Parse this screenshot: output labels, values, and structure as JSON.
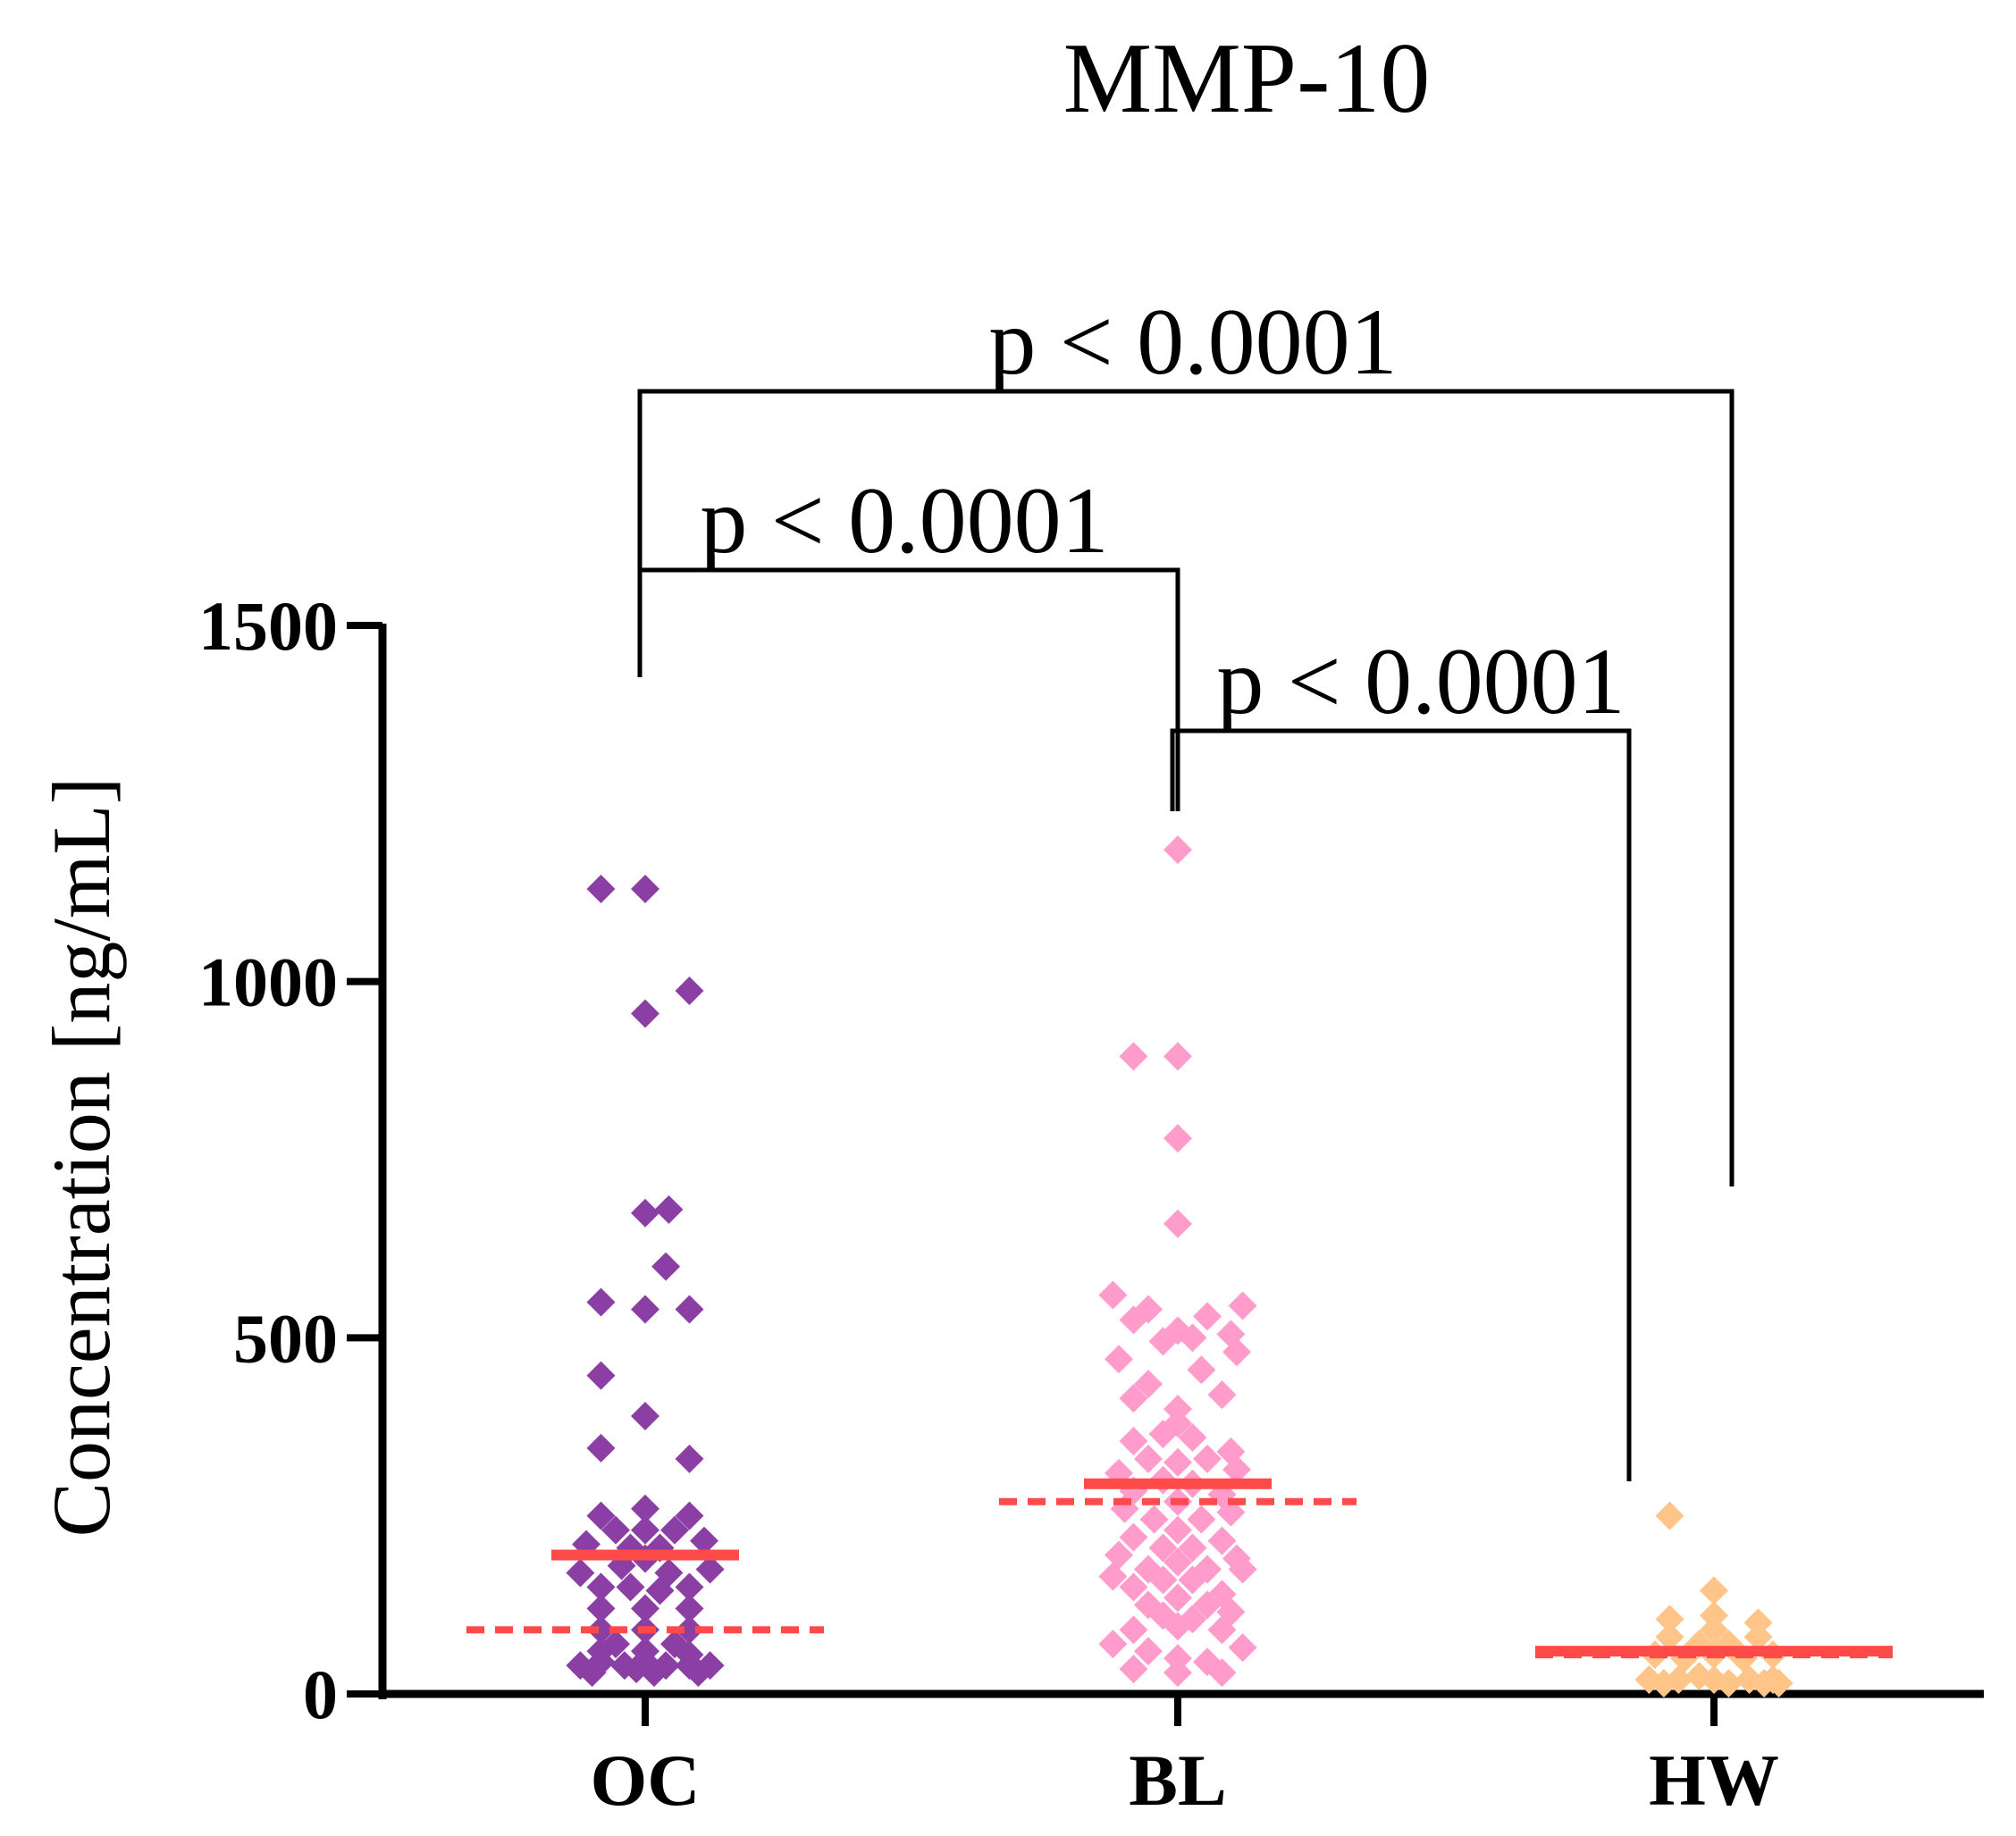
{
  "chart_data": {
    "type": "scatter",
    "title": "MMP-10",
    "xlabel": "",
    "ylabel": "Concentration [ng/mL]",
    "ylim": [
      0,
      1500
    ],
    "yticks": [
      0,
      500,
      1000,
      1500
    ],
    "categories": [
      "OC",
      "BL",
      "HW"
    ],
    "colors": {
      "OC": "#8b3fa5",
      "BL": "#ff9ccb",
      "HW": "#ffc487",
      "median": "#ff4a4a",
      "axis": "#000000"
    },
    "series": [
      {
        "name": "OC",
        "points": [
          [
            -0.15,
            1130
          ],
          [
            0.0,
            1130
          ],
          [
            0.15,
            987
          ],
          [
            0.0,
            955
          ],
          [
            0.08,
            680
          ],
          [
            0.0,
            675
          ],
          [
            -0.15,
            550
          ],
          [
            0.07,
            600
          ],
          [
            0.0,
            540
          ],
          [
            0.15,
            540
          ],
          [
            -0.15,
            447
          ],
          [
            0.0,
            390
          ],
          [
            -0.15,
            345
          ],
          [
            0.15,
            330
          ],
          [
            -0.15,
            250
          ],
          [
            0.15,
            250
          ],
          [
            0.0,
            260
          ],
          [
            -0.1,
            230
          ],
          [
            0.1,
            230
          ],
          [
            -0.2,
            210
          ],
          [
            0.2,
            215
          ],
          [
            0.0,
            230
          ],
          [
            -0.05,
            205
          ],
          [
            0.05,
            205
          ],
          [
            -0.22,
            170
          ],
          [
            0.22,
            175
          ],
          [
            -0.08,
            180
          ],
          [
            0.08,
            170
          ],
          [
            0.0,
            190
          ],
          [
            -0.15,
            150
          ],
          [
            0.15,
            150
          ],
          [
            -0.05,
            150
          ],
          [
            0.05,
            145
          ],
          [
            0.0,
            120
          ],
          [
            -0.15,
            120
          ],
          [
            0.15,
            120
          ],
          [
            -0.15,
            90
          ],
          [
            0.15,
            90
          ],
          [
            0.0,
            90
          ],
          [
            -0.1,
            70
          ],
          [
            0.1,
            70
          ],
          [
            -0.15,
            60
          ],
          [
            0.15,
            55
          ],
          [
            0.0,
            60
          ],
          [
            -0.22,
            40
          ],
          [
            -0.15,
            45
          ],
          [
            -0.07,
            40
          ],
          [
            0.0,
            45
          ],
          [
            0.07,
            40
          ],
          [
            0.15,
            40
          ],
          [
            0.22,
            40
          ],
          [
            -0.18,
            30
          ],
          [
            0.18,
            30
          ],
          [
            -0.03,
            35
          ],
          [
            0.03,
            30
          ]
        ],
        "median": 195,
        "mean": 90
      },
      {
        "name": "BL",
        "points": [
          [
            0.0,
            1185
          ],
          [
            -0.15,
            895
          ],
          [
            0.0,
            895
          ],
          [
            0.0,
            780
          ],
          [
            0.0,
            660
          ],
          [
            -0.22,
            560
          ],
          [
            0.22,
            545
          ],
          [
            -0.1,
            540
          ],
          [
            0.1,
            530
          ],
          [
            -0.15,
            525
          ],
          [
            0.0,
            510
          ],
          [
            0.18,
            505
          ],
          [
            -0.05,
            495
          ],
          [
            0.05,
            500
          ],
          [
            0.2,
            480
          ],
          [
            -0.2,
            470
          ],
          [
            0.08,
            455
          ],
          [
            -0.1,
            435
          ],
          [
            -0.15,
            415
          ],
          [
            0.15,
            420
          ],
          [
            0.0,
            400
          ],
          [
            0.0,
            380
          ],
          [
            -0.05,
            365
          ],
          [
            0.05,
            360
          ],
          [
            -0.15,
            355
          ],
          [
            0.18,
            340
          ],
          [
            -0.1,
            330
          ],
          [
            0.0,
            325
          ],
          [
            0.1,
            330
          ],
          [
            -0.2,
            310
          ],
          [
            0.2,
            315
          ],
          [
            -0.05,
            300
          ],
          [
            0.05,
            295
          ],
          [
            -0.15,
            285
          ],
          [
            0.15,
            280
          ],
          [
            0.0,
            270
          ],
          [
            -0.18,
            260
          ],
          [
            0.18,
            255
          ],
          [
            -0.08,
            245
          ],
          [
            0.08,
            245
          ],
          [
            0.0,
            230
          ],
          [
            -0.15,
            220
          ],
          [
            0.15,
            215
          ],
          [
            -0.05,
            205
          ],
          [
            0.05,
            205
          ],
          [
            -0.2,
            195
          ],
          [
            0.2,
            190
          ],
          [
            0.0,
            185
          ],
          [
            -0.1,
            175
          ],
          [
            0.1,
            175
          ],
          [
            -0.22,
            165
          ],
          [
            0.22,
            175
          ],
          [
            -0.05,
            160
          ],
          [
            0.05,
            160
          ],
          [
            -0.15,
            150
          ],
          [
            0.15,
            140
          ],
          [
            0.0,
            135
          ],
          [
            -0.1,
            125
          ],
          [
            0.1,
            125
          ],
          [
            0.18,
            115
          ],
          [
            -0.05,
            110
          ],
          [
            0.05,
            105
          ],
          [
            0.0,
            95
          ],
          [
            -0.15,
            90
          ],
          [
            0.15,
            90
          ],
          [
            -0.22,
            70
          ],
          [
            0.22,
            65
          ],
          [
            -0.1,
            60
          ],
          [
            0.0,
            50
          ],
          [
            0.1,
            45
          ],
          [
            -0.15,
            35
          ],
          [
            0.0,
            30
          ],
          [
            0.15,
            30
          ]
        ],
        "median": 295,
        "mean": 270
      },
      {
        "name": "HW",
        "points": [
          [
            -0.15,
            250
          ],
          [
            0.0,
            145
          ],
          [
            -0.15,
            105
          ],
          [
            0.0,
            110
          ],
          [
            0.15,
            100
          ],
          [
            -0.15,
            80
          ],
          [
            0.0,
            90
          ],
          [
            0.15,
            80
          ],
          [
            -0.05,
            70
          ],
          [
            0.05,
            70
          ],
          [
            -0.2,
            55
          ],
          [
            0.2,
            55
          ],
          [
            -0.1,
            50
          ],
          [
            0.1,
            50
          ],
          [
            0.0,
            55
          ],
          [
            -0.22,
            20
          ],
          [
            -0.12,
            20
          ],
          [
            -0.05,
            25
          ],
          [
            0.0,
            20
          ],
          [
            0.05,
            15
          ],
          [
            0.12,
            20
          ],
          [
            0.2,
            20
          ],
          [
            0.22,
            15
          ],
          [
            -0.17,
            15
          ],
          [
            0.17,
            15
          ]
        ],
        "median": 60,
        "mean": 55
      }
    ],
    "comparisons": [
      {
        "groups": [
          "OC",
          "HW"
        ],
        "label": "p < 0.0001",
        "tier": 3
      },
      {
        "groups": [
          "OC",
          "BL"
        ],
        "label": "p < 0.0001",
        "tier": 2
      },
      {
        "groups": [
          "BL",
          "HW"
        ],
        "label": "p < 0.0001",
        "tier": 1
      }
    ]
  }
}
